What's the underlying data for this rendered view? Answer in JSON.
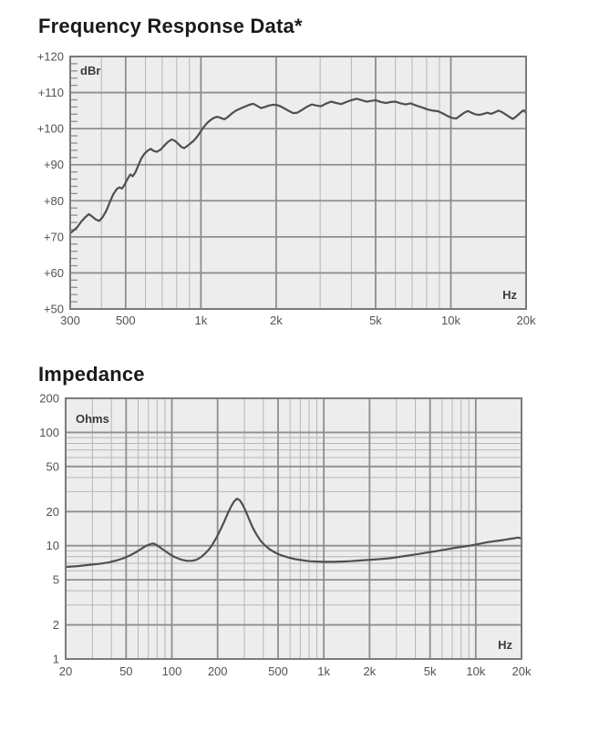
{
  "page_background": "#ffffff",
  "styles": {
    "plot_bg": "#ededed",
    "grid_major": "#8e8e8e",
    "grid_minor": "#b6b6b6",
    "border": "#7a7a7a",
    "curve": "#4f4f4f",
    "tick_text": "#525252",
    "unit_text": "#3b3b3b",
    "title_text": "#1a1a1a"
  },
  "chart_data": [
    {
      "type": "line",
      "title": "Frequency Response Data*",
      "ylabel": "dBr",
      "xlabel": "Hz",
      "x_axis": {
        "scale": "log",
        "min": 300,
        "max": 20000,
        "ticks": [
          [
            "300",
            300
          ],
          [
            "500",
            500
          ],
          [
            "1k",
            1000
          ],
          [
            "2k",
            2000
          ],
          [
            "5k",
            5000
          ],
          [
            "10k",
            10000
          ],
          [
            "20k",
            20000
          ]
        ],
        "minor": [
          400,
          600,
          700,
          800,
          900,
          3000,
          4000,
          6000,
          7000,
          8000,
          9000
        ]
      },
      "y_axis": {
        "scale": "linear",
        "min": 50,
        "max": 120,
        "ticks": [
          [
            "+120",
            120
          ],
          [
            "+110",
            110
          ],
          [
            "+100",
            100
          ],
          [
            "+90",
            90
          ],
          [
            "+80",
            80
          ],
          [
            "+70",
            70
          ],
          [
            "+60",
            60
          ],
          [
            "+50",
            50
          ]
        ],
        "minor_step": 2
      },
      "points": [
        [
          300,
          71.0
        ],
        [
          310,
          71.8
        ],
        [
          320,
          72.7
        ],
        [
          332,
          74.2
        ],
        [
          344,
          75.4
        ],
        [
          356,
          76.3
        ],
        [
          368,
          75.6
        ],
        [
          380,
          74.8
        ],
        [
          392,
          74.4
        ],
        [
          404,
          75.4
        ],
        [
          418,
          77.2
        ],
        [
          432,
          79.6
        ],
        [
          446,
          81.8
        ],
        [
          460,
          83.2
        ],
        [
          472,
          83.7
        ],
        [
          484,
          83.4
        ],
        [
          496,
          84.6
        ],
        [
          510,
          86.2
        ],
        [
          522,
          87.3
        ],
        [
          534,
          86.8
        ],
        [
          548,
          88.0
        ],
        [
          562,
          89.8
        ],
        [
          578,
          91.8
        ],
        [
          594,
          93.0
        ],
        [
          612,
          93.9
        ],
        [
          630,
          94.4
        ],
        [
          648,
          93.8
        ],
        [
          668,
          93.6
        ],
        [
          690,
          94.2
        ],
        [
          714,
          95.3
        ],
        [
          740,
          96.4
        ],
        [
          764,
          97.0
        ],
        [
          788,
          96.6
        ],
        [
          812,
          95.8
        ],
        [
          836,
          94.9
        ],
        [
          858,
          94.6
        ],
        [
          882,
          95.2
        ],
        [
          908,
          95.9
        ],
        [
          934,
          96.6
        ],
        [
          962,
          97.6
        ],
        [
          980,
          98.4
        ],
        [
          1000,
          99.3
        ],
        [
          1030,
          100.6
        ],
        [
          1060,
          101.6
        ],
        [
          1090,
          102.3
        ],
        [
          1120,
          102.9
        ],
        [
          1160,
          103.3
        ],
        [
          1200,
          103.0
        ],
        [
          1240,
          102.6
        ],
        [
          1280,
          103.2
        ],
        [
          1330,
          104.2
        ],
        [
          1380,
          105.0
        ],
        [
          1440,
          105.6
        ],
        [
          1500,
          106.1
        ],
        [
          1560,
          106.6
        ],
        [
          1620,
          106.9
        ],
        [
          1680,
          106.3
        ],
        [
          1740,
          105.7
        ],
        [
          1800,
          106.0
        ],
        [
          1870,
          106.4
        ],
        [
          1940,
          106.6
        ],
        [
          2000,
          106.6
        ],
        [
          2080,
          106.2
        ],
        [
          2160,
          105.6
        ],
        [
          2250,
          104.9
        ],
        [
          2340,
          104.3
        ],
        [
          2430,
          104.4
        ],
        [
          2540,
          105.2
        ],
        [
          2660,
          106.1
        ],
        [
          2780,
          106.7
        ],
        [
          2900,
          106.4
        ],
        [
          3020,
          106.2
        ],
        [
          3160,
          106.9
        ],
        [
          3320,
          107.5
        ],
        [
          3480,
          107.1
        ],
        [
          3640,
          106.8
        ],
        [
          3820,
          107.4
        ],
        [
          4000,
          107.9
        ],
        [
          4200,
          108.3
        ],
        [
          4400,
          107.9
        ],
        [
          4600,
          107.5
        ],
        [
          4800,
          107.7
        ],
        [
          5000,
          107.9
        ],
        [
          5250,
          107.4
        ],
        [
          5500,
          107.1
        ],
        [
          5750,
          107.4
        ],
        [
          6000,
          107.5
        ],
        [
          6300,
          107.0
        ],
        [
          6600,
          106.7
        ],
        [
          6900,
          107.0
        ],
        [
          7200,
          106.5
        ],
        [
          7500,
          106.1
        ],
        [
          7800,
          105.7
        ],
        [
          8100,
          105.3
        ],
        [
          8500,
          105.0
        ],
        [
          8900,
          104.8
        ],
        [
          9300,
          104.2
        ],
        [
          9700,
          103.5
        ],
        [
          10100,
          103.0
        ],
        [
          10500,
          102.8
        ],
        [
          10900,
          103.6
        ],
        [
          11300,
          104.4
        ],
        [
          11700,
          104.9
        ],
        [
          12100,
          104.4
        ],
        [
          12500,
          104.0
        ],
        [
          13000,
          103.8
        ],
        [
          13500,
          104.1
        ],
        [
          14000,
          104.4
        ],
        [
          14500,
          104.1
        ],
        [
          15000,
          104.5
        ],
        [
          15500,
          105.0
        ],
        [
          16000,
          104.6
        ],
        [
          16600,
          103.9
        ],
        [
          17200,
          103.2
        ],
        [
          17700,
          102.7
        ],
        [
          18200,
          103.3
        ],
        [
          18700,
          104.0
        ],
        [
          19200,
          104.7
        ],
        [
          19600,
          105.1
        ],
        [
          20000,
          104.3
        ]
      ]
    },
    {
      "type": "line",
      "title": "Impedance",
      "ylabel": "Ohms",
      "xlabel": "Hz",
      "x_axis": {
        "scale": "log",
        "min": 20,
        "max": 20000,
        "ticks": [
          [
            "20",
            20
          ],
          [
            "50",
            50
          ],
          [
            "100",
            100
          ],
          [
            "200",
            200
          ],
          [
            "500",
            500
          ],
          [
            "1k",
            1000
          ],
          [
            "2k",
            2000
          ],
          [
            "5k",
            5000
          ],
          [
            "10k",
            10000
          ],
          [
            "20k",
            20000
          ]
        ],
        "minor": [
          30,
          40,
          60,
          70,
          80,
          90,
          300,
          400,
          600,
          700,
          800,
          900,
          3000,
          4000,
          6000,
          7000,
          8000,
          9000
        ]
      },
      "y_axis": {
        "scale": "log",
        "min": 1,
        "max": 200,
        "ticks": [
          [
            "200",
            200
          ],
          [
            "100",
            100
          ],
          [
            "50",
            50
          ],
          [
            "20",
            20
          ],
          [
            "10",
            10
          ],
          [
            "5",
            5
          ],
          [
            "2",
            2
          ],
          [
            "1",
            1
          ]
        ],
        "minor": [
          3,
          4,
          6,
          7,
          8,
          9,
          30,
          40,
          60,
          70,
          80,
          90
        ]
      },
      "points": [
        [
          20,
          6.5
        ],
        [
          24,
          6.6
        ],
        [
          28,
          6.75
        ],
        [
          33,
          6.9
        ],
        [
          38,
          7.1
        ],
        [
          43,
          7.4
        ],
        [
          48,
          7.75
        ],
        [
          53,
          8.2
        ],
        [
          58,
          8.75
        ],
        [
          63,
          9.4
        ],
        [
          68,
          10.0
        ],
        [
          72,
          10.3
        ],
        [
          75,
          10.45
        ],
        [
          79,
          10.2
        ],
        [
          84,
          9.6
        ],
        [
          90,
          9.0
        ],
        [
          97,
          8.4
        ],
        [
          105,
          7.9
        ],
        [
          115,
          7.55
        ],
        [
          125,
          7.35
        ],
        [
          135,
          7.35
        ],
        [
          145,
          7.5
        ],
        [
          155,
          7.9
        ],
        [
          165,
          8.5
        ],
        [
          176,
          9.3
        ],
        [
          187,
          10.5
        ],
        [
          198,
          12.0
        ],
        [
          209,
          13.9
        ],
        [
          221,
          16.3
        ],
        [
          233,
          19.2
        ],
        [
          245,
          22.2
        ],
        [
          257,
          24.6
        ],
        [
          268,
          26.0
        ],
        [
          280,
          25.2
        ],
        [
          292,
          23.0
        ],
        [
          306,
          20.3
        ],
        [
          322,
          17.2
        ],
        [
          340,
          14.5
        ],
        [
          360,
          12.6
        ],
        [
          385,
          11.0
        ],
        [
          412,
          10.0
        ],
        [
          440,
          9.3
        ],
        [
          470,
          8.8
        ],
        [
          505,
          8.4
        ],
        [
          545,
          8.1
        ],
        [
          590,
          7.85
        ],
        [
          650,
          7.6
        ],
        [
          720,
          7.45
        ],
        [
          800,
          7.3
        ],
        [
          900,
          7.25
        ],
        [
          1000,
          7.2
        ],
        [
          1150,
          7.2
        ],
        [
          1300,
          7.25
        ],
        [
          1500,
          7.3
        ],
        [
          1700,
          7.4
        ],
        [
          2000,
          7.5
        ],
        [
          2300,
          7.6
        ],
        [
          2700,
          7.75
        ],
        [
          3100,
          7.95
        ],
        [
          3600,
          8.2
        ],
        [
          4200,
          8.45
        ],
        [
          4800,
          8.7
        ],
        [
          5500,
          8.95
        ],
        [
          6300,
          9.25
        ],
        [
          7200,
          9.55
        ],
        [
          8200,
          9.8
        ],
        [
          9100,
          10.0
        ],
        [
          10000,
          10.25
        ],
        [
          11000,
          10.5
        ],
        [
          12000,
          10.75
        ],
        [
          13500,
          11.0
        ],
        [
          15000,
          11.2
        ],
        [
          16500,
          11.45
        ],
        [
          18000,
          11.65
        ],
        [
          19000,
          11.8
        ],
        [
          19500,
          11.7
        ],
        [
          20000,
          11.5
        ]
      ]
    }
  ]
}
